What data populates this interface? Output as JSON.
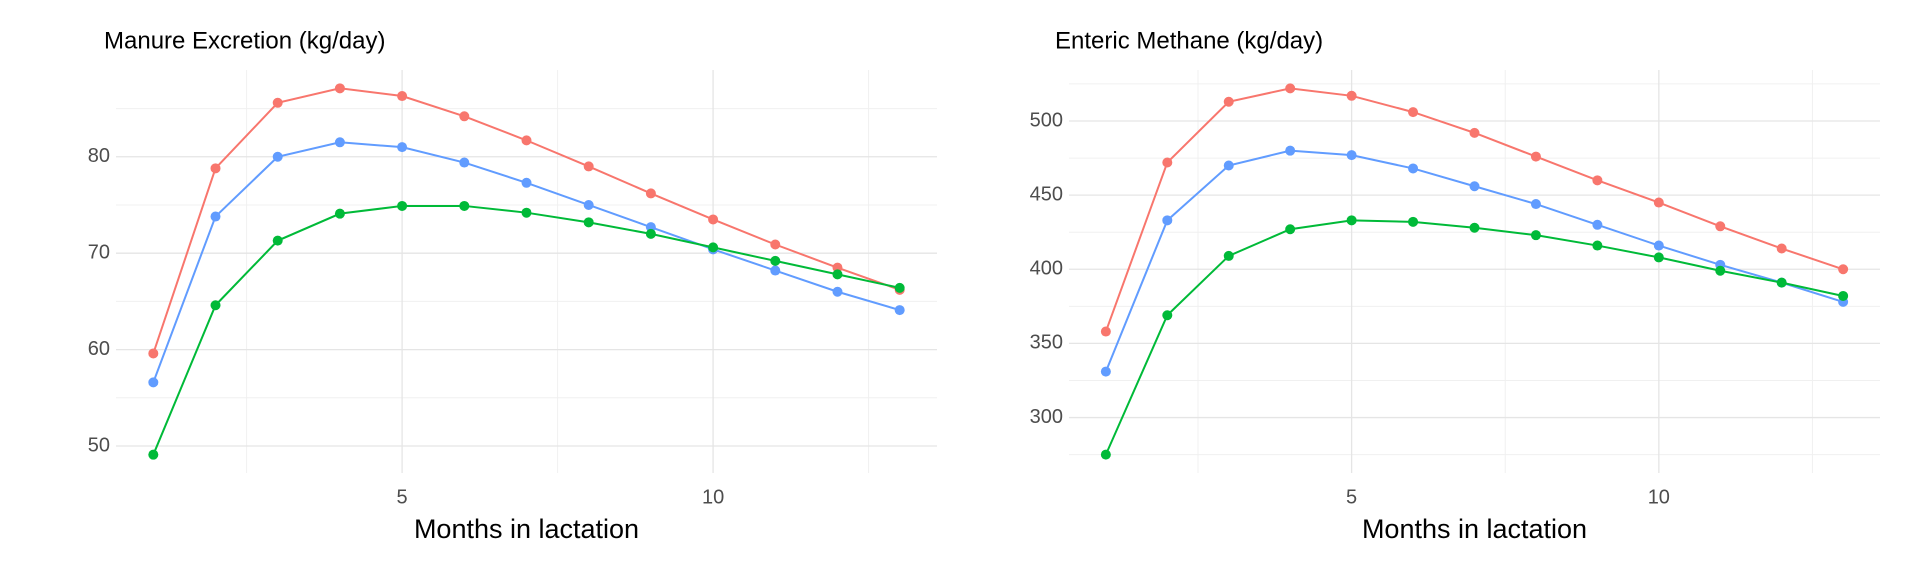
{
  "chart_data": [
    {
      "type": "line",
      "title": "Manure Excretion (kg/day)",
      "x_label": "Months in lactation",
      "x": [
        1,
        2,
        3,
        4,
        5,
        6,
        7,
        8,
        9,
        10,
        11,
        12,
        13
      ],
      "series": [
        {
          "color": "#F8766D",
          "values": [
            59.6,
            78.8,
            85.6,
            87.1,
            86.3,
            84.2,
            81.7,
            79.0,
            76.2,
            73.5,
            70.9,
            68.5,
            66.2
          ]
        },
        {
          "color": "#619CFF",
          "values": [
            56.6,
            73.8,
            80.0,
            81.5,
            81.0,
            79.4,
            77.3,
            75.0,
            72.7,
            70.4,
            68.2,
            66.0,
            64.1
          ]
        },
        {
          "color": "#00BA38",
          "values": [
            49.1,
            64.6,
            71.3,
            74.1,
            74.9,
            74.9,
            74.2,
            73.2,
            72.0,
            70.6,
            69.2,
            67.8,
            66.4
          ]
        }
      ],
      "xlim": [
        0.4,
        13.6
      ],
      "xticks": [
        5,
        10
      ],
      "ylim": [
        47.2,
        89.0
      ],
      "yticks": [
        50,
        60,
        70,
        80
      ],
      "grid": true
    },
    {
      "type": "line",
      "title": "Enteric Methane (kg/day)",
      "x_label": "Months in lactation",
      "x": [
        1,
        2,
        3,
        4,
        5,
        6,
        7,
        8,
        9,
        10,
        11,
        12,
        13
      ],
      "series": [
        {
          "color": "#F8766D",
          "values": [
            358,
            472,
            513,
            522,
            517,
            506,
            492,
            476,
            460,
            445,
            429,
            414,
            400
          ]
        },
        {
          "color": "#619CFF",
          "values": [
            331,
            433,
            470,
            480,
            477,
            468,
            456,
            444,
            430,
            416,
            403,
            391,
            378
          ]
        },
        {
          "color": "#00BA38",
          "values": [
            275,
            369,
            409,
            427,
            433,
            432,
            428,
            423,
            416,
            408,
            399,
            391,
            382
          ]
        }
      ],
      "xlim": [
        0.4,
        13.6
      ],
      "xticks": [
        5,
        10
      ],
      "ylim": [
        262.6,
        534.4
      ],
      "yticks": [
        300,
        350,
        400,
        450,
        500
      ],
      "grid": true
    }
  ]
}
